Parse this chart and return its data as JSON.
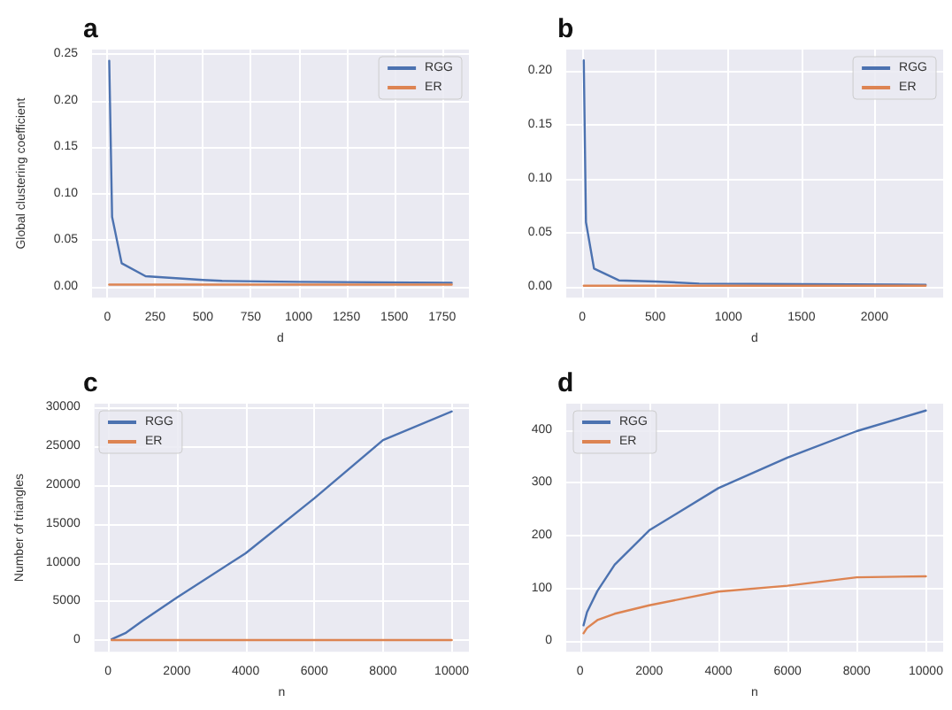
{
  "chart_data": [
    {
      "type": "line",
      "title": "a",
      "xlabel": "d",
      "ylabel": "Global clustering coefficient",
      "xlim": [
        -80,
        1890
      ],
      "xticks": [
        0,
        250,
        500,
        750,
        1000,
        1250,
        1500,
        1750
      ],
      "ylim": [
        -0.012,
        0.255
      ],
      "yticks": [
        {
          "value": 0,
          "label": "0.00"
        },
        {
          "value": 0.05,
          "label": "0.05"
        },
        {
          "value": 0.1,
          "label": "0.10"
        },
        {
          "value": 0.15,
          "label": "0.15"
        },
        {
          "value": 0.2,
          "label": "0.20"
        },
        {
          "value": 0.25,
          "label": "0.25"
        }
      ],
      "grid": true,
      "legend": "top right",
      "series": [
        {
          "name": "RGG",
          "color": "#4c72b0",
          "x": [
            10,
            25,
            75,
            200,
            500,
            600,
            1000,
            1800
          ],
          "values": [
            0.243,
            0.075,
            0.025,
            0.011,
            0.007,
            0.006,
            0.005,
            0.004
          ]
        },
        {
          "name": "ER",
          "color": "#dd8452",
          "x": [
            10,
            25,
            75,
            200,
            500,
            600,
            1000,
            1800
          ],
          "values": [
            0.002,
            0.002,
            0.002,
            0.002,
            0.002,
            0.002,
            0.002,
            0.002
          ]
        }
      ]
    },
    {
      "type": "line",
      "title": "b",
      "xlabel": "d",
      "xlim": [
        -110,
        2470
      ],
      "xticks": [
        0,
        500,
        1000,
        1500,
        2000
      ],
      "ylim": [
        -0.01,
        0.22
      ],
      "yticks": [
        {
          "value": 0,
          "label": "0.00"
        },
        {
          "value": 0.05,
          "label": "0.05"
        },
        {
          "value": 0.1,
          "label": "0.10"
        },
        {
          "value": 0.15,
          "label": "0.15"
        },
        {
          "value": 0.2,
          "label": "0.20"
        }
      ],
      "grid": true,
      "legend": "top right",
      "series": [
        {
          "name": "RGG",
          "color": "#4c72b0",
          "x": [
            10,
            25,
            80,
            250,
            500,
            800,
            2350
          ],
          "values": [
            0.21,
            0.06,
            0.017,
            0.006,
            0.005,
            0.003,
            0.002
          ]
        },
        {
          "name": "ER",
          "color": "#dd8452",
          "x": [
            10,
            25,
            80,
            250,
            500,
            800,
            2350
          ],
          "values": [
            0.001,
            0.001,
            0.001,
            0.001,
            0.001,
            0.001,
            0.001
          ]
        }
      ]
    },
    {
      "type": "line",
      "title": "c",
      "xlabel": "n",
      "ylabel": "Number of triangles",
      "xlim": [
        -400,
        10500
      ],
      "xticks": [
        0,
        2000,
        4000,
        6000,
        8000,
        10000
      ],
      "ylim": [
        -1500,
        30500
      ],
      "yticks": [
        0,
        5000,
        10000,
        15000,
        20000,
        25000,
        30000
      ],
      "grid": true,
      "legend": "top left",
      "series": [
        {
          "name": "RGG",
          "color": "#4c72b0",
          "x": [
            100,
            500,
            1000,
            2000,
            4000,
            6000,
            8000,
            10000
          ],
          "values": [
            100,
            900,
            2500,
            5500,
            11200,
            18300,
            25800,
            29500
          ]
        },
        {
          "name": "ER",
          "color": "#dd8452",
          "x": [
            100,
            500,
            1000,
            2000,
            4000,
            6000,
            8000,
            10000
          ],
          "values": [
            0,
            0,
            0,
            0,
            0,
            0,
            0,
            0
          ]
        }
      ]
    },
    {
      "type": "line",
      "title": "d",
      "xlabel": "n",
      "xlim": [
        -400,
        10500
      ],
      "xticks": [
        0,
        2000,
        4000,
        6000,
        8000,
        10000
      ],
      "ylim": [
        -20,
        450
      ],
      "yticks": [
        0,
        100,
        200,
        300,
        400
      ],
      "grid": true,
      "legend": "top left",
      "series": [
        {
          "name": "RGG",
          "color": "#4c72b0",
          "x": [
            100,
            200,
            500,
            1000,
            2000,
            4000,
            6000,
            8000,
            10000
          ],
          "values": [
            30,
            55,
            95,
            145,
            210,
            290,
            348,
            398,
            437
          ]
        },
        {
          "name": "ER",
          "color": "#dd8452",
          "x": [
            100,
            200,
            500,
            1000,
            2000,
            4000,
            6000,
            8000,
            10000
          ],
          "values": [
            15,
            25,
            40,
            52,
            68,
            94,
            105,
            121,
            123
          ]
        }
      ]
    }
  ]
}
